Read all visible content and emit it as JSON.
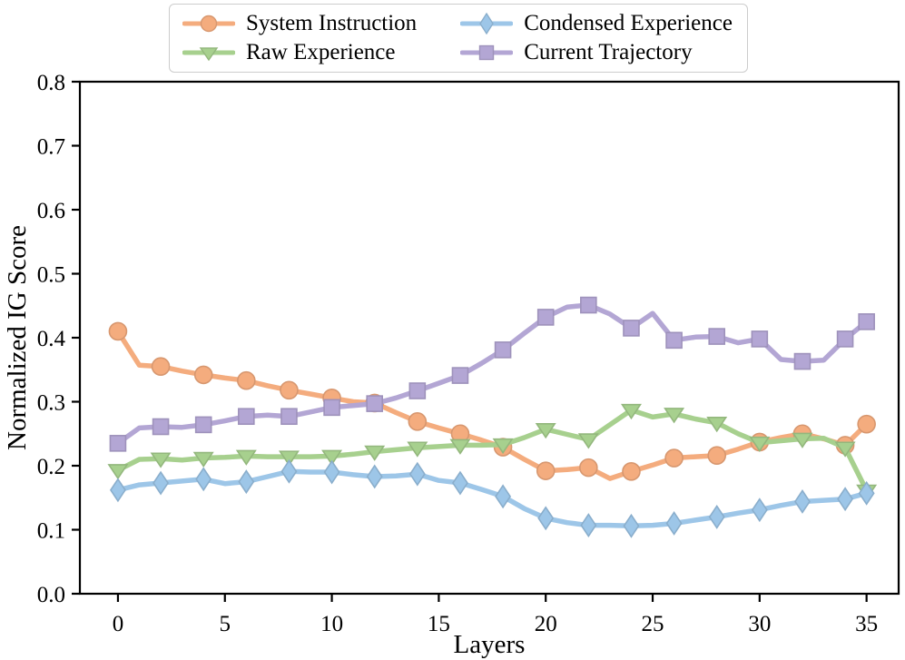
{
  "chart_data": {
    "type": "line",
    "title": "",
    "xlabel": "Layers",
    "ylabel": "Normalized IG Score",
    "xlim": [
      -1.78,
      36.5
    ],
    "ylim": [
      0,
      0.8
    ],
    "xticks": [
      0,
      5,
      10,
      15,
      20,
      25,
      30,
      35
    ],
    "yticks": [
      "0.0",
      "0.1",
      "0.2",
      "0.3",
      "0.4",
      "0.5",
      "0.6",
      "0.7",
      "0.8"
    ],
    "grid": false,
    "legend_position": "top-center",
    "legend_columns": 2,
    "marker_every": 2,
    "x": [
      0,
      1,
      2,
      3,
      4,
      5,
      6,
      7,
      8,
      9,
      10,
      11,
      12,
      13,
      14,
      15,
      16,
      17,
      18,
      19,
      20,
      21,
      22,
      23,
      24,
      25,
      26,
      27,
      28,
      29,
      30,
      31,
      32,
      33,
      34,
      35
    ],
    "series": [
      {
        "name": "System Instruction",
        "color": "#F4AC7E",
        "marker": "circle",
        "values": [
          0.41,
          0.357,
          0.355,
          0.348,
          0.342,
          0.337,
          0.333,
          0.325,
          0.318,
          0.312,
          0.306,
          0.3,
          0.298,
          0.283,
          0.269,
          0.259,
          0.25,
          0.24,
          0.229,
          0.21,
          0.192,
          0.194,
          0.197,
          0.18,
          0.191,
          0.201,
          0.212,
          0.214,
          0.216,
          0.226,
          0.237,
          0.244,
          0.25,
          0.242,
          0.232,
          0.265
        ]
      },
      {
        "name": "Raw Experience",
        "color": "#A7D08E",
        "marker": "triangle-down",
        "values": [
          0.193,
          0.21,
          0.211,
          0.209,
          0.212,
          0.213,
          0.215,
          0.214,
          0.214,
          0.214,
          0.215,
          0.218,
          0.222,
          0.225,
          0.228,
          0.23,
          0.232,
          0.232,
          0.233,
          0.244,
          0.257,
          0.249,
          0.241,
          0.264,
          0.287,
          0.276,
          0.281,
          0.273,
          0.267,
          0.25,
          0.236,
          0.239,
          0.242,
          0.243,
          0.228,
          0.161
        ]
      },
      {
        "name": "Condensed Experience",
        "color": "#9DC6E8",
        "marker": "thin-diamond",
        "values": [
          0.162,
          0.17,
          0.173,
          0.176,
          0.179,
          0.172,
          0.175,
          0.183,
          0.191,
          0.19,
          0.19,
          0.186,
          0.183,
          0.184,
          0.187,
          0.177,
          0.173,
          0.163,
          0.152,
          0.133,
          0.118,
          0.111,
          0.107,
          0.107,
          0.106,
          0.107,
          0.11,
          0.115,
          0.12,
          0.126,
          0.131,
          0.138,
          0.144,
          0.146,
          0.148,
          0.157
        ]
      },
      {
        "name": "Current Trajectory",
        "color": "#B3A6D4",
        "marker": "square",
        "values": [
          0.235,
          0.259,
          0.261,
          0.26,
          0.264,
          0.27,
          0.277,
          0.279,
          0.277,
          0.284,
          0.291,
          0.294,
          0.297,
          0.306,
          0.317,
          0.329,
          0.341,
          0.36,
          0.381,
          0.407,
          0.432,
          0.448,
          0.451,
          0.437,
          0.415,
          0.438,
          0.396,
          0.401,
          0.402,
          0.392,
          0.398,
          0.366,
          0.363,
          0.365,
          0.398,
          0.425
        ]
      }
    ]
  }
}
